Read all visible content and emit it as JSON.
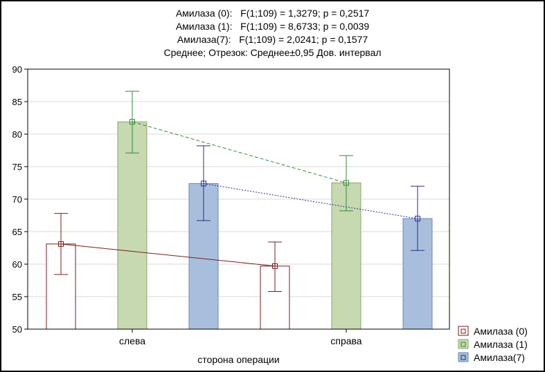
{
  "stats_lines": [
    "Амилаза (0):   F(1;109) = 1,3279; p = 0,2517",
    "Амилаза (1):   F(1;109) = 8,6733; p = 0,0039",
    "Амилаза(7):   F(1;109) = 2,0241; p = 0,1577",
    "Среднее; Отрезок: Среднее±0,95 Дов. интервал"
  ],
  "chart_data": {
    "type": "bar",
    "title": "",
    "xlabel": "сторона операции",
    "ylabel": "",
    "categories": [
      "слева",
      "справа"
    ],
    "ylim": [
      50,
      90
    ],
    "yticks": [
      50,
      55,
      60,
      65,
      70,
      75,
      80,
      85,
      90
    ],
    "legend_position": "bottom-right",
    "grid": true,
    "series": [
      {
        "name": "Амилаза (0)",
        "mean": [
          63.1,
          59.7
        ],
        "ci_low": [
          58.4,
          55.8
        ],
        "ci_high": [
          67.8,
          63.4
        ],
        "fill": "#ffffff",
        "line": "#7b1a1a",
        "line_style": "solid"
      },
      {
        "name": "Амилаза (1)",
        "mean": [
          81.9,
          72.5
        ],
        "ci_low": [
          77.1,
          68.2
        ],
        "ci_high": [
          86.6,
          76.7
        ],
        "fill": "#c6d9b0",
        "line": "#2e8b3a",
        "line_style": "dashed"
      },
      {
        "name": "Амилаза(7)",
        "mean": [
          72.4,
          67.0
        ],
        "ci_low": [
          66.7,
          62.1
        ],
        "ci_high": [
          78.2,
          72.0
        ],
        "fill": "#a7bfdc",
        "line": "#2a2a8a",
        "line_style": "dotted"
      }
    ]
  }
}
